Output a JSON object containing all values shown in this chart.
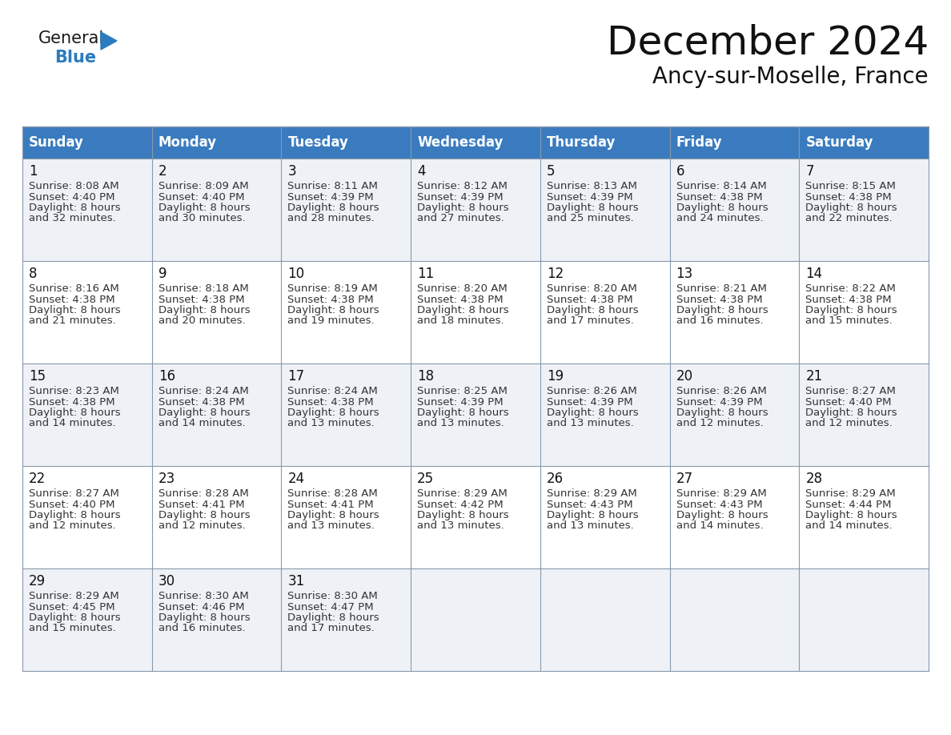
{
  "title": "December 2024",
  "subtitle": "Ancy-sur-Moselle, France",
  "days_of_week": [
    "Sunday",
    "Monday",
    "Tuesday",
    "Wednesday",
    "Thursday",
    "Friday",
    "Saturday"
  ],
  "header_bg": "#3a7bbf",
  "header_text": "#ffffff",
  "row_bg_odd": "#eef2f7",
  "row_bg_even": "#ffffff",
  "cell_text_color": "#333333",
  "date_text_color": "#111111",
  "grid_color": "#8899aa",
  "calendar": [
    [
      {
        "day": "1",
        "sunrise": "8:08 AM",
        "sunset": "4:40 PM",
        "daylight_min": "32 minutes."
      },
      {
        "day": "2",
        "sunrise": "8:09 AM",
        "sunset": "4:40 PM",
        "daylight_min": "30 minutes."
      },
      {
        "day": "3",
        "sunrise": "8:11 AM",
        "sunset": "4:39 PM",
        "daylight_min": "28 minutes."
      },
      {
        "day": "4",
        "sunrise": "8:12 AM",
        "sunset": "4:39 PM",
        "daylight_min": "27 minutes."
      },
      {
        "day": "5",
        "sunrise": "8:13 AM",
        "sunset": "4:39 PM",
        "daylight_min": "25 minutes."
      },
      {
        "day": "6",
        "sunrise": "8:14 AM",
        "sunset": "4:38 PM",
        "daylight_min": "24 minutes."
      },
      {
        "day": "7",
        "sunrise": "8:15 AM",
        "sunset": "4:38 PM",
        "daylight_min": "22 minutes."
      }
    ],
    [
      {
        "day": "8",
        "sunrise": "8:16 AM",
        "sunset": "4:38 PM",
        "daylight_min": "21 minutes."
      },
      {
        "day": "9",
        "sunrise": "8:18 AM",
        "sunset": "4:38 PM",
        "daylight_min": "20 minutes."
      },
      {
        "day": "10",
        "sunrise": "8:19 AM",
        "sunset": "4:38 PM",
        "daylight_min": "19 minutes."
      },
      {
        "day": "11",
        "sunrise": "8:20 AM",
        "sunset": "4:38 PM",
        "daylight_min": "18 minutes."
      },
      {
        "day": "12",
        "sunrise": "8:20 AM",
        "sunset": "4:38 PM",
        "daylight_min": "17 minutes."
      },
      {
        "day": "13",
        "sunrise": "8:21 AM",
        "sunset": "4:38 PM",
        "daylight_min": "16 minutes."
      },
      {
        "day": "14",
        "sunrise": "8:22 AM",
        "sunset": "4:38 PM",
        "daylight_min": "15 minutes."
      }
    ],
    [
      {
        "day": "15",
        "sunrise": "8:23 AM",
        "sunset": "4:38 PM",
        "daylight_min": "14 minutes."
      },
      {
        "day": "16",
        "sunrise": "8:24 AM",
        "sunset": "4:38 PM",
        "daylight_min": "14 minutes."
      },
      {
        "day": "17",
        "sunrise": "8:24 AM",
        "sunset": "4:38 PM",
        "daylight_min": "13 minutes."
      },
      {
        "day": "18",
        "sunrise": "8:25 AM",
        "sunset": "4:39 PM",
        "daylight_min": "13 minutes."
      },
      {
        "day": "19",
        "sunrise": "8:26 AM",
        "sunset": "4:39 PM",
        "daylight_min": "13 minutes."
      },
      {
        "day": "20",
        "sunrise": "8:26 AM",
        "sunset": "4:39 PM",
        "daylight_min": "12 minutes."
      },
      {
        "day": "21",
        "sunrise": "8:27 AM",
        "sunset": "4:40 PM",
        "daylight_min": "12 minutes."
      }
    ],
    [
      {
        "day": "22",
        "sunrise": "8:27 AM",
        "sunset": "4:40 PM",
        "daylight_min": "12 minutes."
      },
      {
        "day": "23",
        "sunrise": "8:28 AM",
        "sunset": "4:41 PM",
        "daylight_min": "12 minutes."
      },
      {
        "day": "24",
        "sunrise": "8:28 AM",
        "sunset": "4:41 PM",
        "daylight_min": "13 minutes."
      },
      {
        "day": "25",
        "sunrise": "8:29 AM",
        "sunset": "4:42 PM",
        "daylight_min": "13 minutes."
      },
      {
        "day": "26",
        "sunrise": "8:29 AM",
        "sunset": "4:43 PM",
        "daylight_min": "13 minutes."
      },
      {
        "day": "27",
        "sunrise": "8:29 AM",
        "sunset": "4:43 PM",
        "daylight_min": "14 minutes."
      },
      {
        "day": "28",
        "sunrise": "8:29 AM",
        "sunset": "4:44 PM",
        "daylight_min": "14 minutes."
      }
    ],
    [
      {
        "day": "29",
        "sunrise": "8:29 AM",
        "sunset": "4:45 PM",
        "daylight_min": "15 minutes."
      },
      {
        "day": "30",
        "sunrise": "8:30 AM",
        "sunset": "4:46 PM",
        "daylight_min": "16 minutes."
      },
      {
        "day": "31",
        "sunrise": "8:30 AM",
        "sunset": "4:47 PM",
        "daylight_min": "17 minutes."
      },
      null,
      null,
      null,
      null
    ]
  ],
  "title_fontsize": 36,
  "subtitle_fontsize": 20,
  "header_fontsize": 12,
  "day_num_fontsize": 12,
  "cell_fontsize": 9.5,
  "logo_fontsize_general": 15,
  "logo_fontsize_blue": 15,
  "logo_color1": "#1a1a1a",
  "logo_color2": "#2a7bbf",
  "logo_triangle_color": "#2a7bbf",
  "fig_width": 11.88,
  "fig_height": 9.18,
  "fig_dpi": 100
}
